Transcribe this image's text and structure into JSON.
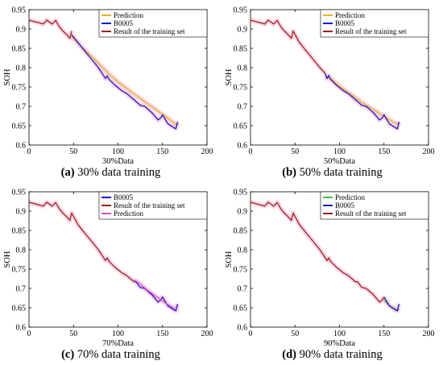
{
  "figure": {
    "panels": [
      {
        "id": "a",
        "caption_label": "(a)",
        "caption_text": "30% data training"
      },
      {
        "id": "b",
        "caption_label": "(b)",
        "caption_text": "50% data training"
      },
      {
        "id": "c",
        "caption_label": "(c)",
        "caption_text": "70% data training"
      },
      {
        "id": "d",
        "caption_label": "(d)",
        "caption_text": "90% data training"
      }
    ]
  },
  "colors": {
    "prediction_ab": "#e8b323",
    "prediction_c": "#d94bd9",
    "prediction_d": "#44c044",
    "b0005": "#1a1acc",
    "training": "#9e1f1f",
    "shading": "#f7c6dc"
  },
  "chart_data": [
    {
      "type": "line",
      "panel": "a",
      "title": "",
      "xlabel": "30%Data",
      "ylabel": "SOH",
      "xlim": [
        0,
        200
      ],
      "ylim": [
        0.6,
        0.95
      ],
      "xticks": [
        "0",
        "50",
        "100",
        "150",
        "200"
      ],
      "yticks": [
        "0.6",
        "0.65",
        "0.7",
        "0.75",
        "0.8",
        "0.85",
        "0.9",
        "0.95"
      ],
      "grid": false,
      "legend_position": "top-right",
      "series": [
        {
          "name": "Prediction",
          "color": "#e8b323",
          "x": [
            48,
            60,
            75,
            88,
            100,
            115,
            130,
            145,
            158,
            167
          ],
          "y": [
            0.88,
            0.852,
            0.818,
            0.788,
            0.763,
            0.737,
            0.712,
            0.688,
            0.666,
            0.65
          ]
        },
        {
          "name": "B0005",
          "color": "#1a1acc",
          "x": [
            48,
            55,
            62,
            70,
            78,
            86,
            88,
            90,
            96,
            104,
            110,
            118,
            125,
            130,
            138,
            145,
            148,
            150,
            156,
            162,
            165,
            167
          ],
          "y": [
            0.885,
            0.865,
            0.845,
            0.823,
            0.8,
            0.772,
            0.779,
            0.77,
            0.756,
            0.741,
            0.733,
            0.717,
            0.703,
            0.7,
            0.684,
            0.665,
            0.67,
            0.678,
            0.655,
            0.646,
            0.642,
            0.66
          ]
        },
        {
          "name": "Result of the training set",
          "color": "#9e1f1f",
          "x": [
            0,
            8,
            16,
            20,
            26,
            30,
            34,
            38,
            42,
            46,
            48
          ],
          "y": [
            0.923,
            0.918,
            0.913,
            0.923,
            0.913,
            0.922,
            0.906,
            0.895,
            0.886,
            0.876,
            0.895
          ]
        }
      ]
    },
    {
      "type": "line",
      "panel": "b",
      "title": "",
      "xlabel": "50%Data",
      "ylabel": "SOH",
      "xlim": [
        0,
        200
      ],
      "ylim": [
        0.6,
        0.95
      ],
      "xticks": [
        "0",
        "50",
        "100",
        "150",
        "200"
      ],
      "yticks": [
        "0.6",
        "0.65",
        "0.7",
        "0.75",
        "0.8",
        "0.85",
        "0.9",
        "0.95"
      ],
      "grid": false,
      "legend_position": "top-right",
      "series": [
        {
          "name": "Prediction",
          "color": "#e8b323",
          "x": [
            84,
            90,
            100,
            110,
            120,
            130,
            140,
            150,
            160,
            167
          ],
          "y": [
            0.775,
            0.772,
            0.752,
            0.735,
            0.719,
            0.703,
            0.689,
            0.674,
            0.66,
            0.652
          ]
        },
        {
          "name": "B0005",
          "color": "#1a1acc",
          "x": [
            84,
            86,
            88,
            90,
            96,
            104,
            110,
            118,
            125,
            130,
            138,
            145,
            148,
            150,
            156,
            162,
            165,
            167
          ],
          "y": [
            0.785,
            0.772,
            0.78,
            0.77,
            0.756,
            0.741,
            0.733,
            0.717,
            0.703,
            0.7,
            0.684,
            0.665,
            0.67,
            0.678,
            0.655,
            0.646,
            0.642,
            0.66
          ]
        },
        {
          "name": "Result of the training set",
          "color": "#9e1f1f",
          "x": [
            0,
            8,
            16,
            20,
            26,
            30,
            34,
            38,
            42,
            46,
            48,
            55,
            62,
            70,
            78,
            84
          ],
          "y": [
            0.923,
            0.918,
            0.913,
            0.923,
            0.913,
            0.922,
            0.906,
            0.895,
            0.886,
            0.876,
            0.895,
            0.865,
            0.845,
            0.823,
            0.8,
            0.785
          ]
        }
      ]
    },
    {
      "type": "line",
      "panel": "c",
      "title": "",
      "xlabel": "70%Data",
      "ylabel": "SOH",
      "xlim": [
        0,
        200
      ],
      "ylim": [
        0.6,
        0.95
      ],
      "xticks": [
        "0",
        "50",
        "100",
        "150",
        "200"
      ],
      "yticks": [
        "0.6",
        "0.65",
        "0.7",
        "0.75",
        "0.8",
        "0.85",
        "0.9",
        "0.95"
      ],
      "grid": false,
      "legend_position": "top-right",
      "series": [
        {
          "name": "B0005",
          "color": "#1a1acc",
          "x": [
            118,
            120,
            125,
            130,
            138,
            145,
            148,
            150,
            156,
            162,
            165,
            167
          ],
          "y": [
            0.717,
            0.718,
            0.703,
            0.7,
            0.684,
            0.665,
            0.67,
            0.678,
            0.655,
            0.646,
            0.642,
            0.66
          ]
        },
        {
          "name": "Result of the training set",
          "color": "#9e1f1f",
          "x": [
            0,
            8,
            16,
            20,
            26,
            30,
            34,
            38,
            42,
            46,
            48,
            55,
            62,
            70,
            78,
            86,
            88,
            90,
            96,
            104,
            110,
            118
          ],
          "y": [
            0.923,
            0.918,
            0.913,
            0.923,
            0.913,
            0.922,
            0.906,
            0.895,
            0.886,
            0.876,
            0.895,
            0.865,
            0.845,
            0.823,
            0.8,
            0.772,
            0.779,
            0.77,
            0.756,
            0.741,
            0.733,
            0.717
          ]
        },
        {
          "name": "Prediction",
          "color": "#d94bd9",
          "x": [
            118,
            125,
            132,
            140,
            148,
            155,
            162,
            167
          ],
          "y": [
            0.722,
            0.712,
            0.697,
            0.684,
            0.671,
            0.66,
            0.65,
            0.646
          ]
        }
      ]
    },
    {
      "type": "line",
      "panel": "d",
      "title": "",
      "xlabel": "90%Data",
      "ylabel": "SOH",
      "xlim": [
        0,
        200
      ],
      "ylim": [
        0.6,
        0.95
      ],
      "xticks": [
        "0",
        "50",
        "100",
        "150",
        "200"
      ],
      "yticks": [
        "0.6",
        "0.65",
        "0.7",
        "0.75",
        "0.8",
        "0.85",
        "0.9",
        "0.95"
      ],
      "grid": false,
      "legend_position": "top-right",
      "series": [
        {
          "name": "Prediction",
          "color": "#44c044",
          "x": [
            150,
            156,
            162,
            165,
            167
          ],
          "y": [
            0.67,
            0.655,
            0.648,
            0.644,
            0.648
          ]
        },
        {
          "name": "B0005",
          "color": "#1a1acc",
          "x": [
            150,
            156,
            162,
            165,
            167
          ],
          "y": [
            0.678,
            0.655,
            0.646,
            0.642,
            0.66
          ]
        },
        {
          "name": "Result of the training set",
          "color": "#9e1f1f",
          "x": [
            0,
            8,
            16,
            20,
            26,
            30,
            34,
            38,
            42,
            46,
            48,
            55,
            62,
            70,
            78,
            86,
            88,
            90,
            96,
            104,
            110,
            118,
            120,
            125,
            130,
            138,
            145,
            148,
            150
          ],
          "y": [
            0.923,
            0.918,
            0.913,
            0.923,
            0.913,
            0.922,
            0.906,
            0.895,
            0.886,
            0.876,
            0.895,
            0.865,
            0.845,
            0.823,
            0.8,
            0.772,
            0.779,
            0.77,
            0.756,
            0.741,
            0.733,
            0.717,
            0.718,
            0.703,
            0.7,
            0.684,
            0.665,
            0.67,
            0.678
          ]
        }
      ]
    }
  ]
}
